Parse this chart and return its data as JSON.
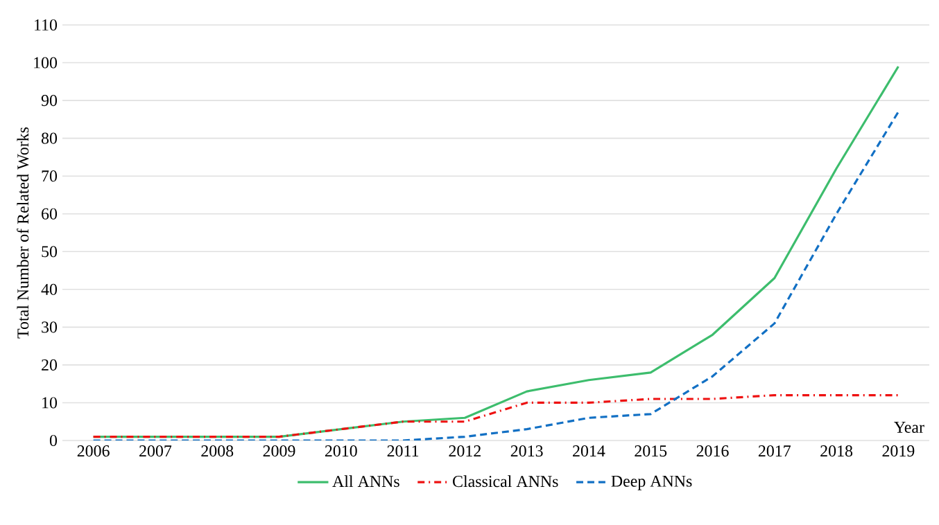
{
  "chart_data": {
    "type": "line",
    "xlabel": "Year",
    "ylabel": "Total Number of Related Works",
    "categories": [
      "2006",
      "2007",
      "2008",
      "2009",
      "2010",
      "2011",
      "2012",
      "2013",
      "2014",
      "2015",
      "2016",
      "2017",
      "2018",
      "2019"
    ],
    "series": [
      {
        "name": "All ANNs",
        "color": "#3dbd6d",
        "line_style": "solid",
        "values": [
          1,
          1,
          1,
          1,
          3,
          5,
          6,
          13,
          16,
          18,
          28,
          43,
          72,
          99
        ]
      },
      {
        "name": "Classical ANNs",
        "color": "#ee1111",
        "line_style": "dashdot",
        "values": [
          1,
          1,
          1,
          1,
          3,
          5,
          5,
          10,
          10,
          11,
          11,
          12,
          12,
          12
        ]
      },
      {
        "name": "Deep ANNs",
        "color": "#1270c4",
        "line_style": "dashed",
        "values": [
          0,
          0,
          0,
          0,
          0,
          0,
          1,
          3,
          6,
          7,
          17,
          31,
          60,
          87
        ]
      }
    ],
    "ylim": [
      0,
      110
    ],
    "yticks": [
      0,
      10,
      20,
      30,
      40,
      50,
      60,
      70,
      80,
      90,
      100,
      110
    ],
    "grid": "y",
    "legend": "bottom",
    "marker": "none"
  }
}
